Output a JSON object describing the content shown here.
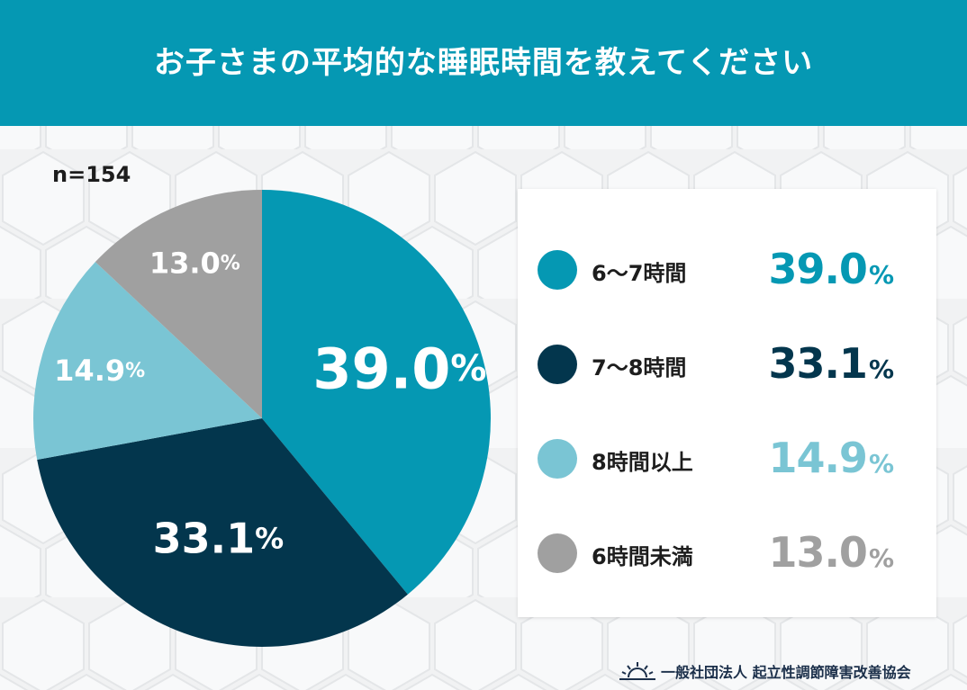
{
  "header": {
    "title": "お子さまの平均的な睡眠時間を教えてください"
  },
  "sample_size": "n=154",
  "colors": {
    "header": "#0598b3",
    "c1": "#0598b3",
    "c2": "#03364d",
    "c3": "#7ac5d4",
    "c4": "#a0a0a0"
  },
  "chart_data": {
    "type": "pie",
    "title": "お子さまの平均的な睡眠時間を教えてください",
    "unit": "%",
    "slices": [
      {
        "label": "6〜7時間",
        "value": 39.0,
        "display": "39.0",
        "color": "#0598b3"
      },
      {
        "label": "7〜8時間",
        "value": 33.1,
        "display": "33.1",
        "color": "#03364d"
      },
      {
        "label": "8時間以上",
        "value": 14.9,
        "display": "14.9",
        "color": "#7ac5d4"
      },
      {
        "label": "6時間未満",
        "value": 13.0,
        "display": "13.0",
        "color": "#a0a0a0"
      }
    ]
  },
  "footer": {
    "organization": "一般社団法人 起立性調節障害改善協会",
    "logo_icon": "sunrise-icon"
  }
}
